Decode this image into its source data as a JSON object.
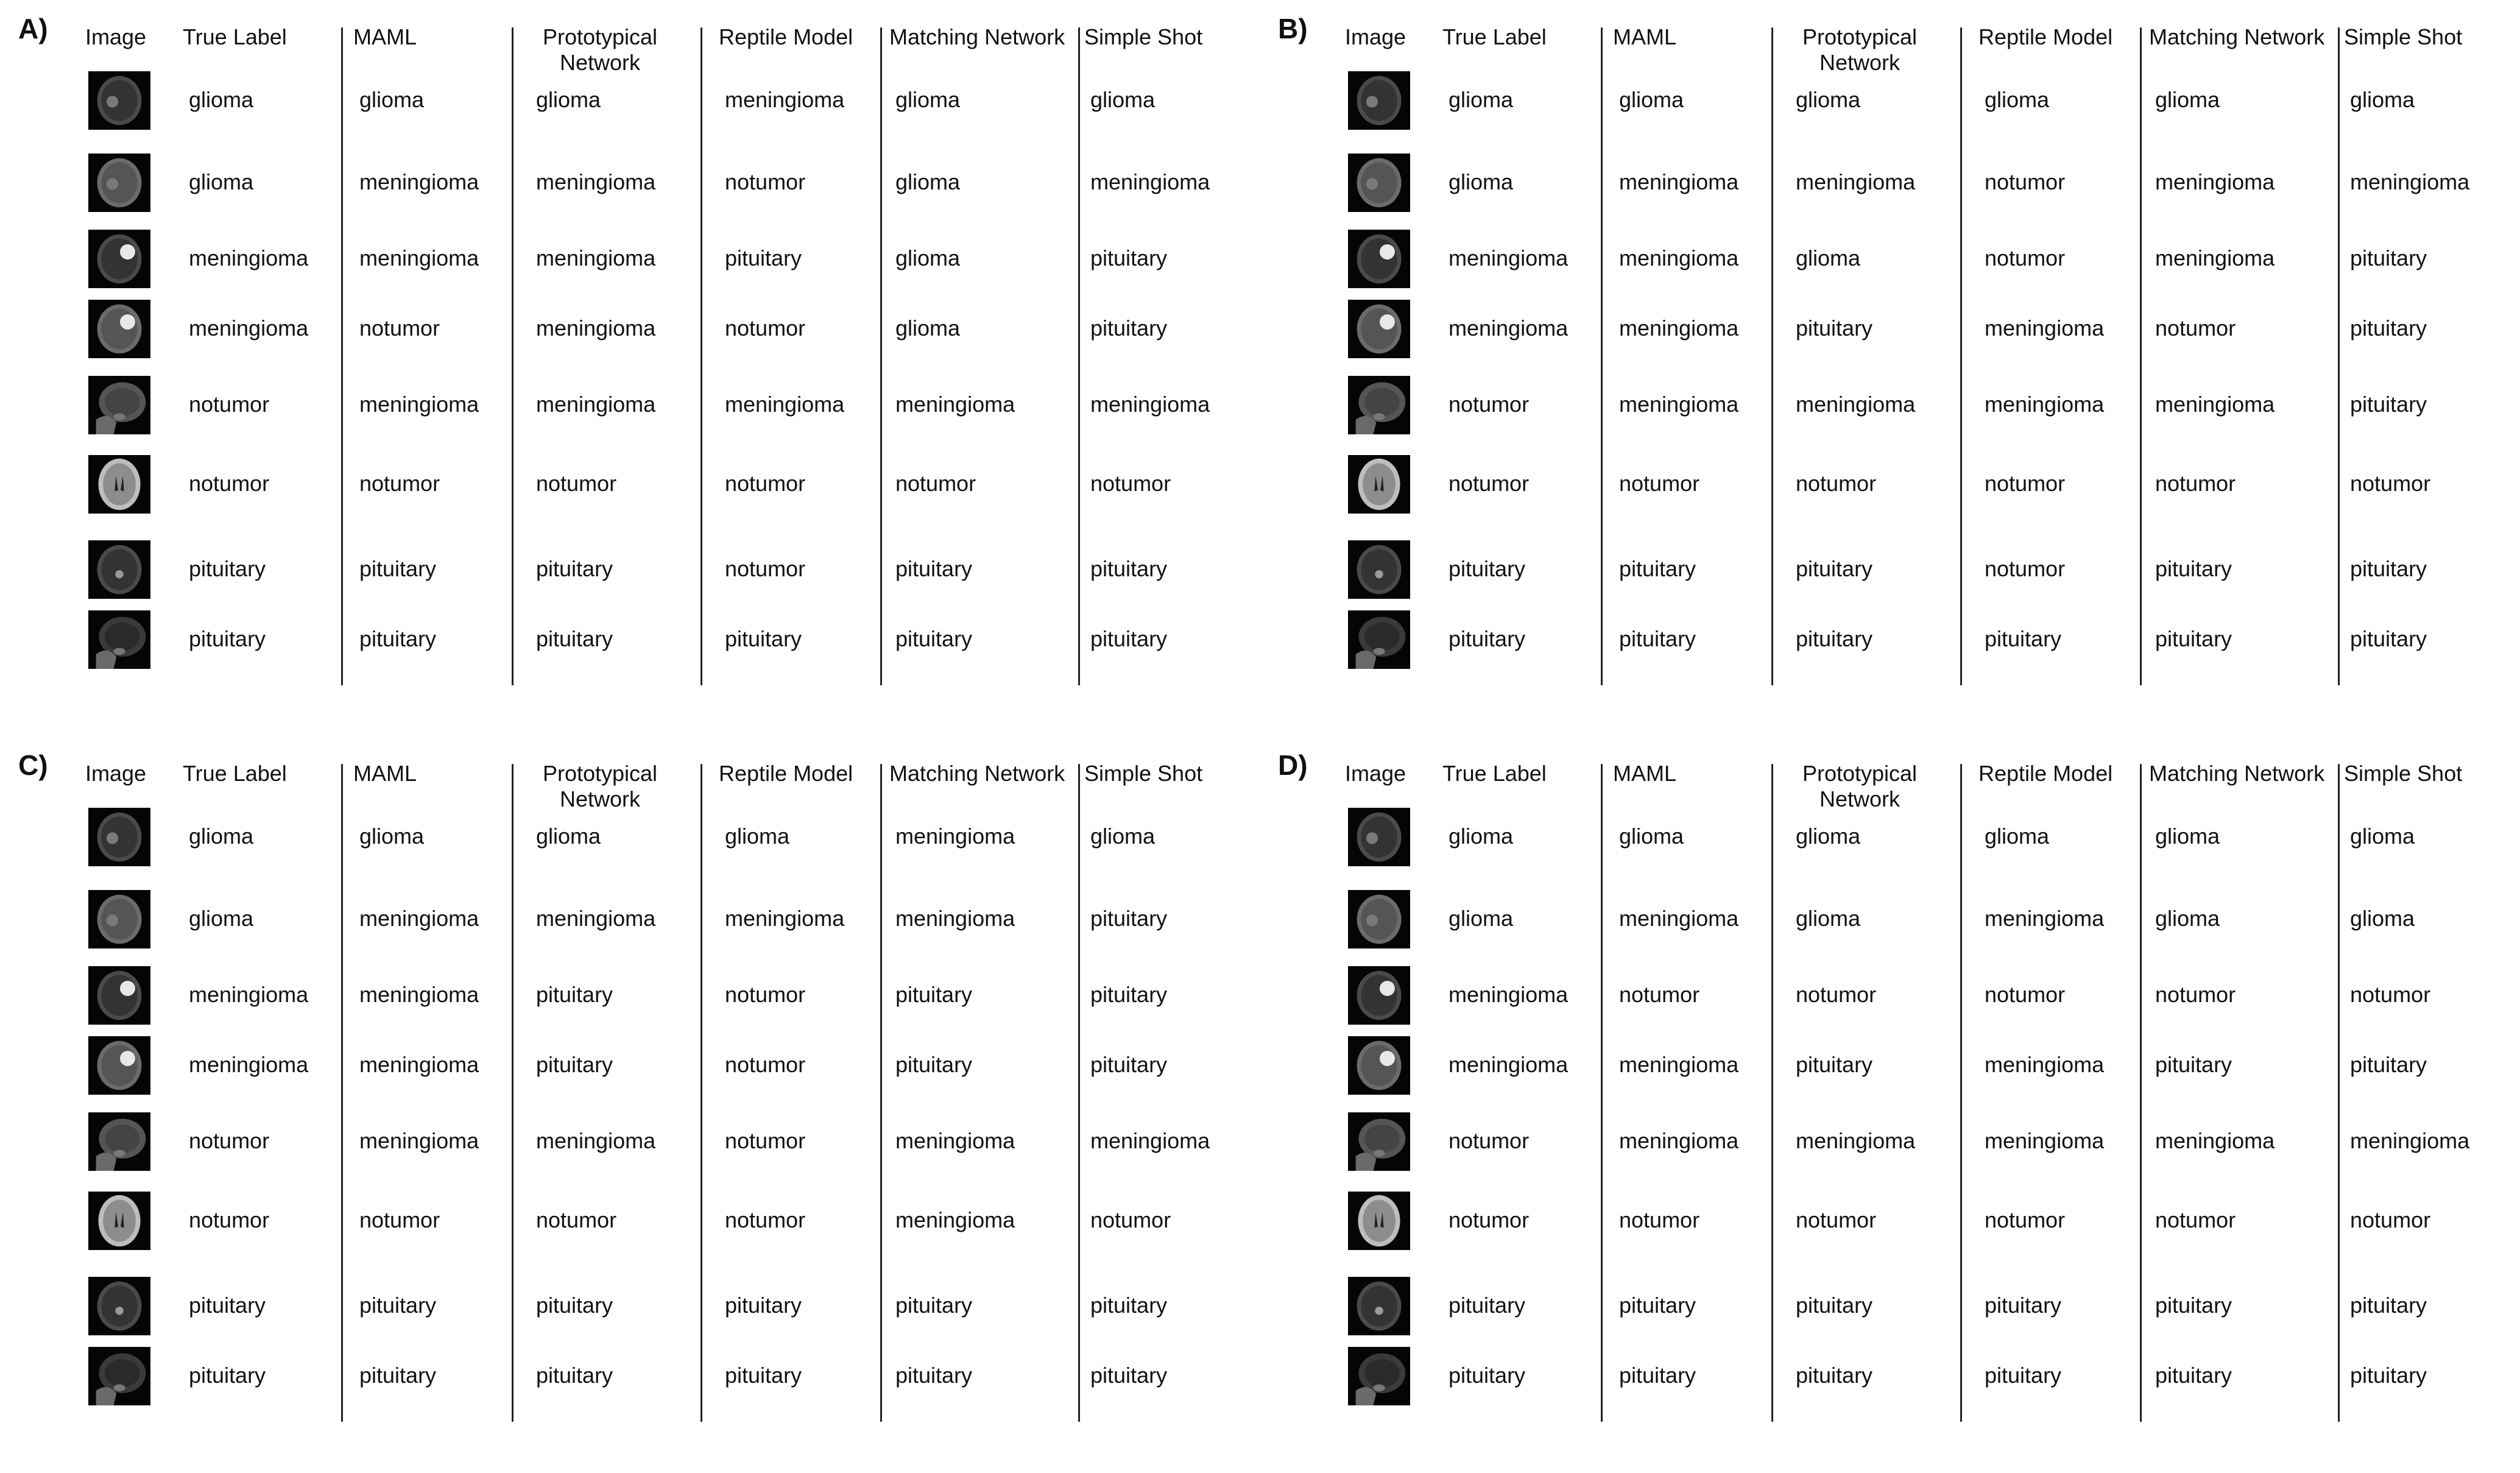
{
  "columns": [
    "Image",
    "True Label",
    "MAML",
    "Prototypical Network",
    "Reptile Model",
    "Matching Network",
    "Simple Shot"
  ],
  "image_kinds": [
    "axial-glioma",
    "axial-glioma-bright",
    "axial-meningioma",
    "axial-meningioma-bright",
    "sagittal",
    "axial-flair",
    "axial-pituitary",
    "sagittal-dark"
  ],
  "panels": [
    {
      "label": "A)",
      "rows": [
        [
          "glioma",
          "glioma",
          "glioma",
          "meningioma",
          "glioma",
          "glioma"
        ],
        [
          "glioma",
          "meningioma",
          "meningioma",
          "notumor",
          "glioma",
          "meningioma"
        ],
        [
          "meningioma",
          "meningioma",
          "meningioma",
          "pituitary",
          "glioma",
          "pituitary"
        ],
        [
          "meningioma",
          "notumor",
          "meningioma",
          "notumor",
          "glioma",
          "pituitary"
        ],
        [
          "notumor",
          "meningioma",
          "meningioma",
          "meningioma",
          "meningioma",
          "meningioma"
        ],
        [
          "notumor",
          "notumor",
          "notumor",
          "notumor",
          "notumor",
          "notumor"
        ],
        [
          "pituitary",
          "pituitary",
          "pituitary",
          "notumor",
          "pituitary",
          "pituitary"
        ],
        [
          "pituitary",
          "pituitary",
          "pituitary",
          "pituitary",
          "pituitary",
          "pituitary"
        ]
      ]
    },
    {
      "label": "B)",
      "rows": [
        [
          "glioma",
          "glioma",
          "glioma",
          "glioma",
          "glioma",
          "glioma"
        ],
        [
          "glioma",
          "meningioma",
          "meningioma",
          "notumor",
          "meningioma",
          "meningioma"
        ],
        [
          "meningioma",
          "meningioma",
          "glioma",
          "notumor",
          "meningioma",
          "pituitary"
        ],
        [
          "meningioma",
          "meningioma",
          "pituitary",
          "meningioma",
          "notumor",
          "pituitary"
        ],
        [
          "notumor",
          "meningioma",
          "meningioma",
          "meningioma",
          "meningioma",
          "pituitary"
        ],
        [
          "notumor",
          "notumor",
          "notumor",
          "notumor",
          "notumor",
          "notumor"
        ],
        [
          "pituitary",
          "pituitary",
          "pituitary",
          "notumor",
          "pituitary",
          "pituitary"
        ],
        [
          "pituitary",
          "pituitary",
          "pituitary",
          "pituitary",
          "pituitary",
          "pituitary"
        ]
      ]
    },
    {
      "label": "C)",
      "rows": [
        [
          "glioma",
          "glioma",
          "glioma",
          "glioma",
          "meningioma",
          "glioma"
        ],
        [
          "glioma",
          "meningioma",
          "meningioma",
          "meningioma",
          "meningioma",
          "pituitary"
        ],
        [
          "meningioma",
          "meningioma",
          "pituitary",
          "notumor",
          "pituitary",
          "pituitary"
        ],
        [
          "meningioma",
          "meningioma",
          "pituitary",
          "notumor",
          "pituitary",
          "pituitary"
        ],
        [
          "notumor",
          "meningioma",
          "meningioma",
          "notumor",
          "meningioma",
          "meningioma"
        ],
        [
          "notumor",
          "notumor",
          "notumor",
          "notumor",
          "meningioma",
          "notumor"
        ],
        [
          "pituitary",
          "pituitary",
          "pituitary",
          "pituitary",
          "pituitary",
          "pituitary"
        ],
        [
          "pituitary",
          "pituitary",
          "pituitary",
          "pituitary",
          "pituitary",
          "pituitary"
        ]
      ]
    },
    {
      "label": "D)",
      "rows": [
        [
          "glioma",
          "glioma",
          "glioma",
          "glioma",
          "glioma",
          "glioma"
        ],
        [
          "glioma",
          "meningioma",
          "glioma",
          "meningioma",
          "glioma",
          "glioma"
        ],
        [
          "meningioma",
          "notumor",
          "notumor",
          "notumor",
          "notumor",
          "notumor"
        ],
        [
          "meningioma",
          "meningioma",
          "pituitary",
          "meningioma",
          "pituitary",
          "pituitary"
        ],
        [
          "notumor",
          "meningioma",
          "meningioma",
          "meningioma",
          "meningioma",
          "meningioma"
        ],
        [
          "notumor",
          "notumor",
          "notumor",
          "notumor",
          "notumor",
          "notumor"
        ],
        [
          "pituitary",
          "pituitary",
          "pituitary",
          "pituitary",
          "pituitary",
          "pituitary"
        ],
        [
          "pituitary",
          "pituitary",
          "pituitary",
          "pituitary",
          "pituitary",
          "pituitary"
        ]
      ]
    }
  ]
}
